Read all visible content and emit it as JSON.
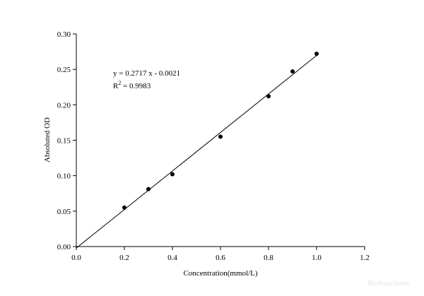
{
  "chart_data": {
    "type": "scatter",
    "x_label": "Concentration(mmol/L)",
    "y_label": "Absoluted OD",
    "x": [
      0.2,
      0.3,
      0.4,
      0.6,
      0.8,
      0.9,
      1.0
    ],
    "values": [
      0.055,
      0.081,
      0.102,
      0.155,
      0.212,
      0.247,
      0.272
    ],
    "color": "#000000",
    "fit": {
      "x": [
        0.0,
        1.0
      ],
      "values": [
        -0.0021,
        0.2696
      ]
    },
    "equation": "y = 0.2717 x - 0.0021",
    "r2": {
      "base": "R",
      "sup": "2",
      "rest": " = 0.9983"
    },
    "xlim": [
      0,
      1.2
    ],
    "ylim": [
      0,
      0.3
    ],
    "xticks": [
      {
        "value": 0,
        "label": "0.0"
      },
      {
        "value": 0.2,
        "label": "0.2"
      },
      {
        "value": 0.4,
        "label": "0.4"
      },
      {
        "value": 0.6,
        "label": "0.6"
      },
      {
        "value": 0.8,
        "label": "0.8"
      },
      {
        "value": 1.0,
        "label": "1.0"
      },
      {
        "value": 1.2,
        "label": "1.2"
      }
    ],
    "yticks": [
      {
        "value": 0,
        "label": "0.00"
      },
      {
        "value": 0.05,
        "label": "0.05"
      },
      {
        "value": 0.1,
        "label": "0.10"
      },
      {
        "value": 0.15,
        "label": "0.15"
      },
      {
        "value": 0.2,
        "label": "0.20"
      },
      {
        "value": 0.25,
        "label": "0.25"
      },
      {
        "value": 0.3,
        "label": "0.30"
      }
    ],
    "watermark": "Bioboscience"
  }
}
